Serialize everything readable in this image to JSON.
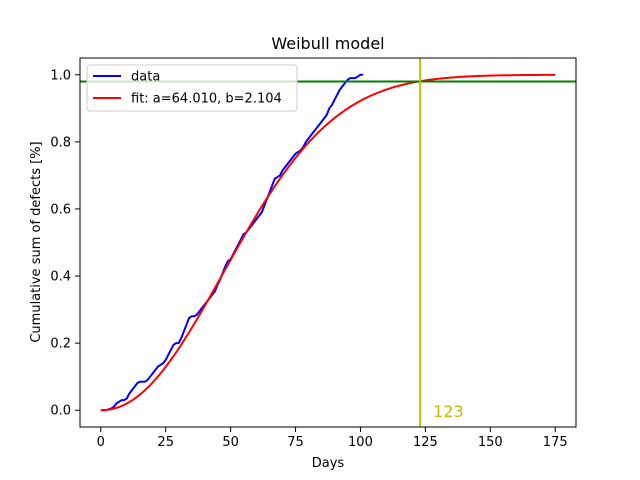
{
  "chart_data": {
    "type": "line",
    "title": "Weibull model",
    "xlabel": "Days",
    "ylabel": "Cumulative sum of defects [%]",
    "xlim": [
      -8,
      183
    ],
    "ylim": [
      -0.05,
      1.05
    ],
    "xticks": [
      0,
      25,
      50,
      75,
      100,
      125,
      150,
      175
    ],
    "yticks": [
      0.0,
      0.2,
      0.4,
      0.6,
      0.8,
      1.0
    ],
    "xtick_labels": [
      "0",
      "25",
      "50",
      "75",
      "100",
      "125",
      "150",
      "175"
    ],
    "ytick_labels": [
      "0.0",
      "0.2",
      "0.4",
      "0.6",
      "0.8",
      "1.0"
    ],
    "grid": false,
    "legend_position": "top-left",
    "series": [
      {
        "name": "data",
        "color": "#0000ff",
        "x": [
          0,
          2,
          4,
          5,
          6,
          7,
          8,
          9,
          10,
          11,
          12,
          13,
          14,
          15,
          16,
          17,
          18,
          19,
          20,
          21,
          22,
          23,
          24,
          25,
          26,
          27,
          28,
          29,
          30,
          31,
          32,
          33,
          34,
          35,
          36,
          37,
          38,
          39,
          40,
          41,
          42,
          43,
          44,
          45,
          46,
          47,
          48,
          49,
          50,
          51,
          52,
          53,
          54,
          55,
          56,
          57,
          58,
          59,
          60,
          61,
          62,
          63,
          64,
          65,
          66,
          67,
          68,
          69,
          70,
          71,
          72,
          73,
          74,
          75,
          76,
          77,
          78,
          79,
          80,
          81,
          82,
          83,
          84,
          85,
          86,
          87,
          88,
          89,
          90,
          91,
          92,
          93,
          94,
          95,
          96,
          97,
          98,
          99,
          100,
          101
        ],
        "y": [
          0.0,
          0.0,
          0.005,
          0.01,
          0.02,
          0.025,
          0.03,
          0.03,
          0.035,
          0.05,
          0.06,
          0.07,
          0.08,
          0.085,
          0.085,
          0.085,
          0.09,
          0.1,
          0.11,
          0.12,
          0.13,
          0.135,
          0.14,
          0.15,
          0.165,
          0.18,
          0.195,
          0.2,
          0.2,
          0.215,
          0.235,
          0.255,
          0.275,
          0.28,
          0.28,
          0.285,
          0.295,
          0.305,
          0.315,
          0.325,
          0.335,
          0.345,
          0.355,
          0.375,
          0.39,
          0.41,
          0.43,
          0.445,
          0.45,
          0.465,
          0.48,
          0.495,
          0.51,
          0.525,
          0.53,
          0.54,
          0.55,
          0.56,
          0.57,
          0.58,
          0.59,
          0.61,
          0.63,
          0.65,
          0.67,
          0.69,
          0.695,
          0.7,
          0.715,
          0.725,
          0.735,
          0.745,
          0.755,
          0.765,
          0.77,
          0.775,
          0.785,
          0.8,
          0.81,
          0.82,
          0.83,
          0.84,
          0.85,
          0.86,
          0.87,
          0.88,
          0.9,
          0.91,
          0.925,
          0.94,
          0.955,
          0.965,
          0.975,
          0.985,
          0.99,
          0.99,
          0.99,
          0.995,
          1.0,
          1.0
        ]
      },
      {
        "name": "fit: a=64.010, b=2.104",
        "color": "#ff0000",
        "weibull": {
          "a": 64.01,
          "b": 2.104
        },
        "x_range": [
          0,
          175
        ]
      }
    ],
    "reference_lines": [
      {
        "orientation": "horizontal",
        "value": 0.98,
        "color": "#008000"
      },
      {
        "orientation": "vertical",
        "value": 123,
        "color": "#bfbf00"
      }
    ],
    "annotations": [
      {
        "text": "123",
        "x": 128,
        "y": -0.02,
        "color": "#bfbf00"
      }
    ]
  }
}
